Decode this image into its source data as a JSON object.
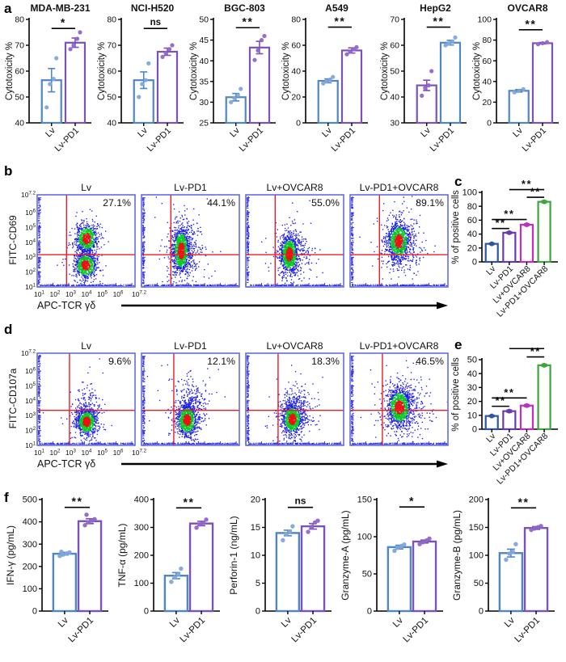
{
  "figure": {
    "panel_labels": {
      "a": "a",
      "b": "b",
      "c": "c",
      "d": "d",
      "e": "e",
      "f": "f"
    }
  },
  "palette": {
    "blue": {
      "stroke": "#4E86C6",
      "dot": "#7FA6DA"
    },
    "purple": {
      "stroke": "#7B52B5",
      "dot": "#9066C9"
    },
    "c_blue": {
      "stroke": "#2B55A8",
      "dot": "#2B55A8"
    },
    "c_purple": {
      "stroke": "#6B3AB0",
      "dot": "#6B3AB0"
    },
    "magenta": {
      "stroke": "#C02EC0",
      "dot": "#C02EC0"
    },
    "green": {
      "stroke": "#3EA43E",
      "dot": "#3EA43E"
    },
    "flow": {
      "frame": "#5A62E0",
      "tick": "#4040D8",
      "red": "#EE1C25",
      "dens_blue": "#1D1DE8",
      "dens_green": "#06CE1D",
      "dens_red": "#EE1111"
    }
  },
  "chart_data": [
    {
      "id": "a1",
      "type": "bar",
      "title": "MDA-MB-231",
      "ylabel": "Cytotoxicity %",
      "ylim": [
        40,
        80
      ],
      "yticks": [
        40,
        50,
        60,
        70,
        80
      ],
      "categories": [
        "Lv",
        "Lv-PD1"
      ],
      "bars": [
        {
          "label": "Lv",
          "color": "blue",
          "value": 56.5,
          "err": 4.5,
          "points": [
            46,
            55,
            57,
            65
          ]
        },
        {
          "label": "Lv-PD1",
          "color": "purple",
          "value": 71,
          "err": 1.8,
          "points": [
            68.5,
            70,
            72.5,
            75
          ]
        }
      ],
      "sig": [
        {
          "a": 0,
          "b": 1,
          "label": "*",
          "y": 76.5
        }
      ]
    },
    {
      "id": "a2",
      "type": "bar",
      "title": "NCI-H520",
      "ylabel": "Cytotoxicity %",
      "ylim": [
        40,
        80
      ],
      "yticks": [
        40,
        50,
        60,
        70,
        80
      ],
      "categories": [
        "Lv",
        "Lv-PD1"
      ],
      "bars": [
        {
          "label": "Lv",
          "color": "blue",
          "value": 56.5,
          "err": 3.2,
          "points": [
            50,
            55,
            56.5,
            63
          ]
        },
        {
          "label": "Lv-PD1",
          "color": "purple",
          "value": 67.5,
          "err": 1.4,
          "points": [
            65.5,
            67,
            68.5,
            70
          ]
        }
      ],
      "sig": [
        {
          "a": 0,
          "b": 1,
          "label": "ns",
          "y": 76.5
        }
      ]
    },
    {
      "id": "a3",
      "type": "bar",
      "title": "BGC-803",
      "ylabel": "Cytotoxicity %",
      "ylim": [
        25,
        50
      ],
      "yticks": [
        25,
        30,
        35,
        40,
        45,
        50
      ],
      "categories": [
        "Lv",
        "Lv-PD1"
      ],
      "bars": [
        {
          "label": "Lv",
          "color": "blue",
          "value": 31.2,
          "err": 0.9,
          "points": [
            30,
            31,
            31.7,
            33.2
          ]
        },
        {
          "label": "Lv-PD1",
          "color": "purple",
          "value": 43.2,
          "err": 1.5,
          "points": [
            40.2,
            42.5,
            45,
            46
          ]
        }
      ],
      "sig": [
        {
          "a": 0,
          "b": 1,
          "label": "**",
          "y": 48
        }
      ]
    },
    {
      "id": "a4",
      "type": "bar",
      "title": "A549",
      "ylabel": "Cytotoxicity %",
      "ylim": [
        0,
        80
      ],
      "yticks": [
        0,
        20,
        40,
        60,
        80
      ],
      "categories": [
        "Lv",
        "Lv-PD1"
      ],
      "bars": [
        {
          "label": "Lv",
          "color": "blue",
          "value": 32.5,
          "err": 1.5,
          "points": [
            30.5,
            32,
            33.5,
            35.5
          ]
        },
        {
          "label": "Lv-PD1",
          "color": "purple",
          "value": 56,
          "err": 2,
          "points": [
            53,
            55,
            57,
            58.5
          ]
        }
      ],
      "sig": [
        {
          "a": 0,
          "b": 1,
          "label": "**",
          "y": 74
        }
      ]
    },
    {
      "id": "a5",
      "type": "bar",
      "title": "HepG2",
      "ylabel": "Cytotoxicity %",
      "ylim": [
        30,
        70
      ],
      "yticks": [
        30,
        40,
        50,
        60,
        70
      ],
      "categories": [
        "Lv",
        "Lv-PD1"
      ],
      "bars": [
        {
          "label": "Lv",
          "color": "purple",
          "value": 44.5,
          "err": 2,
          "points": [
            40.5,
            43.5,
            44.5,
            50
          ]
        },
        {
          "label": "Lv-PD1",
          "color": "blue",
          "value": 61,
          "err": 0.9,
          "points": [
            60,
            60.7,
            61.5,
            63
          ]
        }
      ],
      "sig": [
        {
          "a": 0,
          "b": 1,
          "label": "**",
          "y": 67
        }
      ]
    },
    {
      "id": "a6",
      "type": "bar",
      "title": "OVCAR8",
      "ylabel": "Cytotoxicity %",
      "ylim": [
        0,
        100
      ],
      "yticks": [
        0,
        20,
        40,
        60,
        80,
        100
      ],
      "categories": [
        "Lv",
        "Lv-PD1"
      ],
      "bars": [
        {
          "label": "Lv",
          "color": "blue",
          "value": 31,
          "err": 1.2,
          "points": [
            29.5,
            31,
            32.5
          ]
        },
        {
          "label": "Lv-PD1",
          "color": "purple",
          "value": 77,
          "err": 0.7,
          "points": [
            76,
            77,
            78
          ]
        }
      ],
      "sig": [
        {
          "a": 0,
          "b": 1,
          "label": "**",
          "y": 90
        }
      ]
    },
    {
      "id": "b",
      "type": "flow",
      "ylabel": "FITC-CD69",
      "xlabel": "APC-TCR γδ",
      "x_ticks": [
        "1",
        "2",
        "3",
        "4",
        "5",
        "6",
        "7.2"
      ],
      "y_ticks": [
        "7.2",
        "6",
        "5",
        "4",
        "3",
        "2",
        "1"
      ],
      "quad": {
        "x": 0.3,
        "y": 0.65
      },
      "plots": [
        {
          "title": "Lv",
          "percent": "27.1%",
          "blobs": [
            {
              "cx": 0.5,
              "cy": 0.47,
              "sx": 0.055,
              "sy": 0.075,
              "n": 650
            },
            {
              "cx": 0.49,
              "cy": 0.76,
              "sx": 0.055,
              "sy": 0.07,
              "n": 650
            },
            {
              "cx": 0.495,
              "cy": 0.62,
              "sx": 0.05,
              "sy": 0.1,
              "n": 250,
              "outer": true
            }
          ]
        },
        {
          "title": "Lv-PD1",
          "percent": "44.1%",
          "blobs": [
            {
              "cx": 0.4,
              "cy": 0.6,
              "sx": 0.042,
              "sy": 0.12,
              "n": 1000
            },
            {
              "cx": 0.45,
              "cy": 0.6,
              "sx": 0.085,
              "sy": 0.15,
              "n": 350,
              "outer": true
            }
          ]
        },
        {
          "title": "Lv+OVCAR8",
          "percent": "55.0%",
          "blobs": [
            {
              "cx": 0.44,
              "cy": 0.64,
              "sx": 0.045,
              "sy": 0.1,
              "n": 900
            },
            {
              "cx": 0.48,
              "cy": 0.62,
              "sx": 0.09,
              "sy": 0.14,
              "n": 300,
              "outer": true
            }
          ]
        },
        {
          "title": "Lv-PD1+OVCAR8",
          "percent": "89.1%",
          "blobs": [
            {
              "cx": 0.49,
              "cy": 0.5,
              "sx": 0.055,
              "sy": 0.1,
              "n": 900
            },
            {
              "cx": 0.53,
              "cy": 0.54,
              "sx": 0.1,
              "sy": 0.15,
              "n": 350,
              "outer": true
            }
          ]
        }
      ]
    },
    {
      "id": "c",
      "type": "bar",
      "title": "",
      "ylabel": "% of positive cells",
      "ylim": [
        0,
        100
      ],
      "yticks": [
        0,
        20,
        40,
        60,
        80,
        100
      ],
      "categories": [
        "Lv",
        "Lv-PD1",
        "Lv+OVCAR8",
        "Lv-PD1+OVCAR8"
      ],
      "bars": [
        {
          "label": "Lv",
          "color": "c_blue",
          "value": 26,
          "err": 1,
          "points": [
            26
          ]
        },
        {
          "label": "Lv-PD1",
          "color": "c_purple",
          "value": 42,
          "err": 1.2,
          "points": [
            42
          ]
        },
        {
          "label": "Lv+OVCAR8",
          "color": "magenta",
          "value": 53.5,
          "err": 1.2,
          "points": [
            53.5
          ]
        },
        {
          "label": "Lv-PD1+OVCAR8",
          "color": "green",
          "value": 86.5,
          "err": 1.5,
          "points": [
            86.5
          ]
        }
      ],
      "sig": [
        {
          "a": 0,
          "b": 1,
          "label": "**",
          "y": 48
        },
        {
          "a": 0,
          "b": 2,
          "label": "**",
          "y": 61
        },
        {
          "a": 2,
          "b": 3,
          "label": "**",
          "y": 93
        },
        {
          "a": 1,
          "b": 3,
          "label": "**",
          "y": 104
        }
      ]
    },
    {
      "id": "d",
      "type": "flow",
      "ylabel": "FITC-CD107a",
      "xlabel": "APC-TCR γδ",
      "x_ticks": [
        "1",
        "2",
        "3",
        "4",
        "5",
        "6",
        "7.2"
      ],
      "y_ticks": [
        "7.2",
        "6",
        "5",
        "4",
        "3",
        "2",
        "1"
      ],
      "quad": {
        "x": 0.33,
        "y": 0.62
      },
      "plots": [
        {
          "title": "Lv",
          "percent": "9.6%",
          "blobs": [
            {
              "cx": 0.5,
              "cy": 0.74,
              "sx": 0.05,
              "sy": 0.07,
              "n": 800
            },
            {
              "cx": 0.51,
              "cy": 0.62,
              "sx": 0.08,
              "sy": 0.13,
              "n": 200,
              "outer": true
            }
          ]
        },
        {
          "title": "Lv-PD1",
          "percent": "12.1%",
          "blobs": [
            {
              "cx": 0.46,
              "cy": 0.72,
              "sx": 0.05,
              "sy": 0.085,
              "n": 850
            },
            {
              "cx": 0.5,
              "cy": 0.55,
              "sx": 0.09,
              "sy": 0.16,
              "n": 320,
              "outer": true
            }
          ]
        },
        {
          "title": "Lv+OVCAR8",
          "percent": "18.3%",
          "blobs": [
            {
              "cx": 0.47,
              "cy": 0.71,
              "sx": 0.05,
              "sy": 0.08,
              "n": 850
            },
            {
              "cx": 0.51,
              "cy": 0.6,
              "sx": 0.09,
              "sy": 0.14,
              "n": 280,
              "outer": true
            }
          ]
        },
        {
          "title": "Lv-PD1+OVCAR8",
          "percent": "46.5%",
          "blobs": [
            {
              "cx": 0.5,
              "cy": 0.58,
              "sx": 0.06,
              "sy": 0.1,
              "n": 950
            },
            {
              "cx": 0.54,
              "cy": 0.6,
              "sx": 0.11,
              "sy": 0.16,
              "n": 380,
              "outer": true
            }
          ]
        }
      ]
    },
    {
      "id": "e",
      "type": "bar",
      "title": "",
      "ylabel": "% of positive cells",
      "ylim": [
        0,
        50
      ],
      "yticks": [
        0,
        10,
        20,
        30,
        40,
        50
      ],
      "categories": [
        "Lv",
        "Lv-PD1",
        "Lv+OVCAR8",
        "Lv-PD1+OVCAR8"
      ],
      "bars": [
        {
          "label": "Lv",
          "color": "c_blue",
          "value": 9.5,
          "err": 0.5,
          "points": [
            9.5
          ]
        },
        {
          "label": "Lv-PD1",
          "color": "c_purple",
          "value": 13,
          "err": 0.8,
          "points": [
            13
          ]
        },
        {
          "label": "Lv+OVCAR8",
          "color": "magenta",
          "value": 17,
          "err": 0.7,
          "points": [
            17
          ]
        },
        {
          "label": "Lv-PD1+OVCAR8",
          "color": "green",
          "value": 46,
          "err": 0.8,
          "points": [
            46
          ]
        }
      ],
      "sig": [
        {
          "a": 0,
          "b": 1,
          "label": "**",
          "y": 16.5
        },
        {
          "a": 0,
          "b": 2,
          "label": "**",
          "y": 22.5
        },
        {
          "a": 2,
          "b": 3,
          "label": "**",
          "y": 52
        },
        {
          "a": 1,
          "b": 3,
          "label": "**",
          "y": 58
        }
      ]
    },
    {
      "id": "f1",
      "type": "bar",
      "title": "",
      "ylabel": "IFN-γ (pg/mL)",
      "ylim": [
        0,
        500
      ],
      "yticks": [
        0,
        100,
        200,
        300,
        400,
        500
      ],
      "categories": [
        "Lv",
        "Lv-PD1"
      ],
      "bars": [
        {
          "label": "Lv",
          "color": "blue",
          "value": 257,
          "err": 6,
          "points": [
            247,
            253,
            258,
            263,
            266
          ]
        },
        {
          "label": "Lv-PD1",
          "color": "purple",
          "value": 403,
          "err": 11,
          "points": [
            385,
            398,
            405,
            412,
            432
          ]
        }
      ],
      "sig": [
        {
          "a": 0,
          "b": 1,
          "label": "**",
          "y": 465
        }
      ]
    },
    {
      "id": "f2",
      "type": "bar",
      "title": "",
      "ylabel": "TNF-α (pg/mL)",
      "ylim": [
        0,
        400
      ],
      "yticks": [
        0,
        100,
        200,
        300,
        400
      ],
      "categories": [
        "Lv",
        "Lv-PD1"
      ],
      "bars": [
        {
          "label": "Lv",
          "color": "blue",
          "value": 127,
          "err": 11,
          "points": [
            105,
            121,
            131,
            152
          ]
        },
        {
          "label": "Lv-PD1",
          "color": "purple",
          "value": 314,
          "err": 8,
          "points": [
            299,
            311,
            316,
            328
          ]
        }
      ],
      "sig": [
        {
          "a": 0,
          "b": 1,
          "label": "**",
          "y": 370
        }
      ]
    },
    {
      "id": "f3",
      "type": "bar",
      "title": "",
      "ylabel": "Perforin-1 (ng/mL)",
      "ylim": [
        0,
        20
      ],
      "yticks": [
        0,
        5,
        10,
        15,
        20
      ],
      "categories": [
        "Lv",
        "Lv-PD1"
      ],
      "bars": [
        {
          "label": "Lv",
          "color": "blue",
          "value": 14,
          "err": 0.5,
          "points": [
            12.7,
            13.8,
            14.3,
            15.2
          ]
        },
        {
          "label": "Lv-PD1",
          "color": "purple",
          "value": 15.2,
          "err": 0.5,
          "points": [
            14.2,
            15.1,
            15.9,
            16.2
          ]
        }
      ],
      "sig": [
        {
          "a": 0,
          "b": 1,
          "label": "ns",
          "y": 18.6
        }
      ]
    },
    {
      "id": "f4",
      "type": "bar",
      "title": "",
      "ylabel": "Granzyme-A (pg/mL)",
      "ylim": [
        0,
        150
      ],
      "yticks": [
        0,
        50,
        100,
        150
      ],
      "categories": [
        "Lv",
        "Lv-PD1"
      ],
      "bars": [
        {
          "label": "Lv",
          "color": "blue",
          "value": 86,
          "err": 2.5,
          "points": [
            81,
            85,
            87.5,
            89.5
          ]
        },
        {
          "label": "Lv-PD1",
          "color": "purple",
          "value": 93.5,
          "err": 2,
          "points": [
            90,
            92.5,
            95,
            97.5
          ]
        }
      ],
      "sig": [
        {
          "a": 0,
          "b": 1,
          "label": "*",
          "y": 140
        }
      ]
    },
    {
      "id": "f5",
      "type": "bar",
      "title": "",
      "ylabel": "Granzyme-B (pg/mL)",
      "ylim": [
        0,
        200
      ],
      "yticks": [
        0,
        50,
        100,
        150,
        200
      ],
      "categories": [
        "Lv",
        "Lv-PD1"
      ],
      "bars": [
        {
          "label": "Lv",
          "color": "blue",
          "value": 104,
          "err": 7,
          "points": [
            92,
            103,
            106,
            120
          ]
        },
        {
          "label": "Lv-PD1",
          "color": "purple",
          "value": 149,
          "err": 2.5,
          "points": [
            145.5,
            148,
            150.5,
            152.5
          ]
        }
      ],
      "sig": [
        {
          "a": 0,
          "b": 1,
          "label": "**",
          "y": 185
        }
      ]
    }
  ]
}
